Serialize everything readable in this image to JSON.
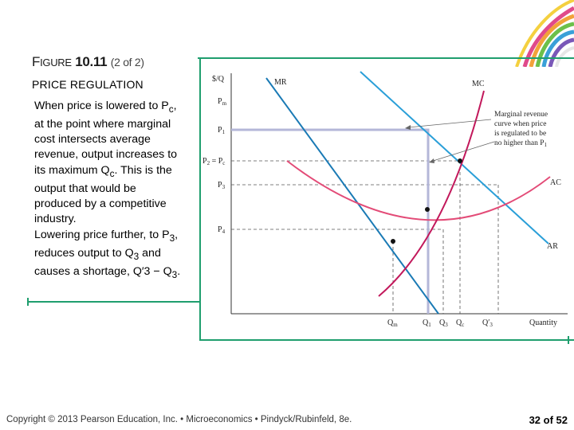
{
  "slide": {
    "title_first": "F",
    "title_rest": "IGURE",
    "title_number": "10.11",
    "title_part": "(2 of 2)",
    "subtitle": "PRICE REGULATION",
    "para1_parts": [
      "When price is lowered to P",
      "c",
      ", at the point where marginal cost intersects average revenue, output increases to its maximum Q",
      "c",
      ". This is the output that would be produced by a competitive industry."
    ],
    "para2_parts": [
      "Lowering price further, to P",
      "3",
      ", reduces output to Q",
      "3",
      " and causes a shortage, Q′3 − Q",
      "3",
      "."
    ],
    "footer": "Copyright © 2013 Pearson Education, Inc. • Microeconomics • Pindyck/Rubinfeld, 8e.",
    "page": "32 of 52"
  },
  "diagram": {
    "y_axis_label": "$/Q",
    "x_axis_label": "Quantity",
    "price_labels": [
      "P",
      "m",
      "P",
      "1",
      "P",
      "2",
      " = P",
      "c",
      "P",
      "3",
      "P",
      "4"
    ],
    "quantity_labels": [
      "Q",
      "m",
      "Q",
      "1",
      "Q",
      "3",
      "Q",
      "c",
      "Q′",
      "3"
    ],
    "curve_labels": {
      "mr": "MR",
      "mc": "MC",
      "ac": "AC",
      "ar": "AR"
    },
    "annotation_lines": [
      "Marginal revenue",
      "curve when price",
      "is regulated to be",
      "no higher than P",
      "1"
    ],
    "colors": {
      "mr": "#1a7ab5",
      "ar": "#2a9fd8",
      "mc": "#c2185b",
      "ac": "#e34b77",
      "regulated_mr": "#b4b7d8",
      "frame": "#1f9e6e"
    }
  }
}
